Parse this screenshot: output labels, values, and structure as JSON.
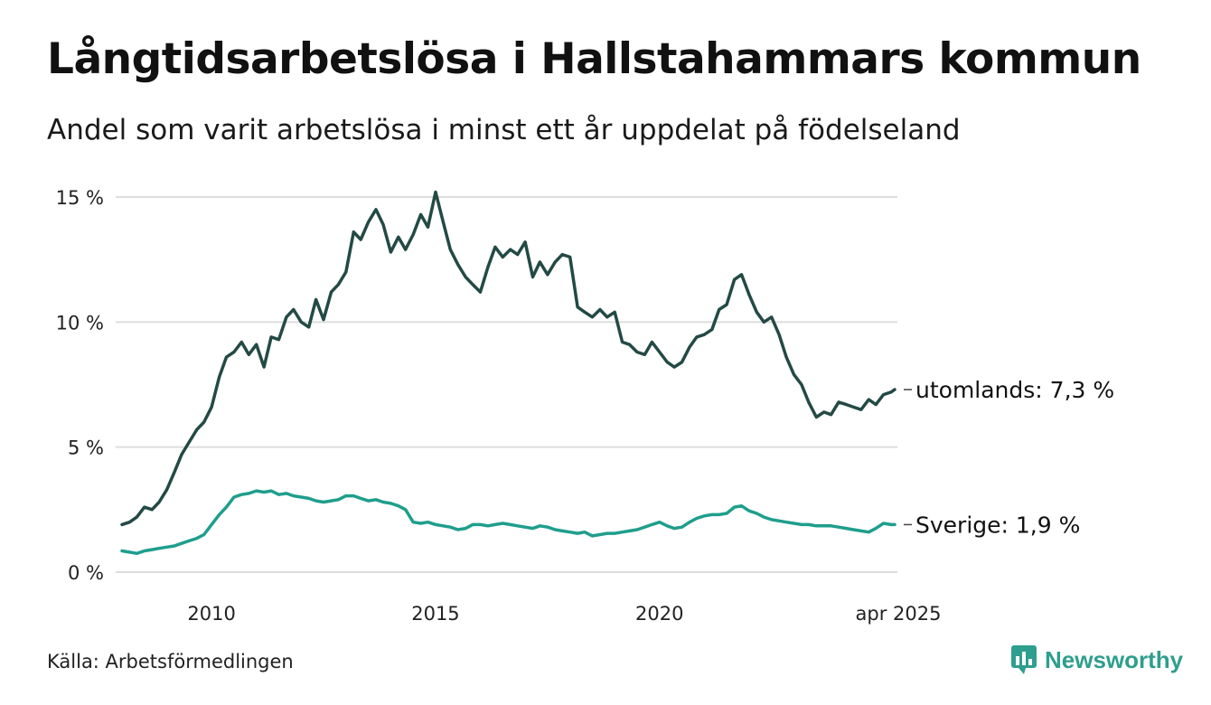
{
  "header": {
    "title": "Långtidsarbetslösa i Hallstahammars kommun",
    "subtitle": "Andel som varit arbetslösa i minst ett år uppdelat på födelseland"
  },
  "footer": {
    "source": "Källa: Arbetsförmedlingen",
    "brand": "Newsworthy",
    "brand_icon": "newsworthy-logo-icon"
  },
  "colors": {
    "utomlands": "#234a45",
    "sverige": "#1f9e8c",
    "grid": "#dddddd",
    "brand": "#2e9e8e"
  },
  "chart_data": {
    "type": "line",
    "title": "Långtidsarbetslösa i Hallstahammars kommun",
    "subtitle": "Andel som varit arbetslösa i minst ett år uppdelat på födelseland",
    "x_range": [
      2008.0,
      2025.25
    ],
    "ylim": [
      0,
      15.5
    ],
    "grid": true,
    "y_ticks": [
      0,
      5,
      10,
      15
    ],
    "y_tick_labels": [
      "0 %",
      "5 %",
      "10 %",
      "15 %"
    ],
    "x_ticks": [
      2010,
      2015,
      2020,
      2025.25
    ],
    "x_tick_labels": [
      "2010",
      "2015",
      "2020",
      "apr 2025"
    ],
    "series": [
      {
        "key": "utomlands",
        "end_label": "utomlands: 7,3 %",
        "points": [
          [
            2008.0,
            1.9
          ],
          [
            2008.17,
            2.0
          ],
          [
            2008.33,
            2.2
          ],
          [
            2008.5,
            2.6
          ],
          [
            2008.67,
            2.5
          ],
          [
            2008.83,
            2.8
          ],
          [
            2009.0,
            3.3
          ],
          [
            2009.17,
            4.0
          ],
          [
            2009.33,
            4.7
          ],
          [
            2009.5,
            5.2
          ],
          [
            2009.67,
            5.7
          ],
          [
            2009.83,
            6.0
          ],
          [
            2010.0,
            6.6
          ],
          [
            2010.17,
            7.8
          ],
          [
            2010.33,
            8.6
          ],
          [
            2010.5,
            8.8
          ],
          [
            2010.67,
            9.2
          ],
          [
            2010.83,
            8.7
          ],
          [
            2011.0,
            9.1
          ],
          [
            2011.17,
            8.2
          ],
          [
            2011.33,
            9.4
          ],
          [
            2011.5,
            9.3
          ],
          [
            2011.67,
            10.2
          ],
          [
            2011.83,
            10.5
          ],
          [
            2012.0,
            10.0
          ],
          [
            2012.17,
            9.8
          ],
          [
            2012.33,
            10.9
          ],
          [
            2012.5,
            10.1
          ],
          [
            2012.67,
            11.2
          ],
          [
            2012.83,
            11.5
          ],
          [
            2013.0,
            12.0
          ],
          [
            2013.17,
            13.6
          ],
          [
            2013.33,
            13.3
          ],
          [
            2013.5,
            14.0
          ],
          [
            2013.67,
            14.5
          ],
          [
            2013.83,
            13.9
          ],
          [
            2014.0,
            12.8
          ],
          [
            2014.17,
            13.4
          ],
          [
            2014.33,
            12.9
          ],
          [
            2014.5,
            13.5
          ],
          [
            2014.67,
            14.3
          ],
          [
            2014.83,
            13.8
          ],
          [
            2015.0,
            15.2
          ],
          [
            2015.17,
            14.0
          ],
          [
            2015.33,
            12.9
          ],
          [
            2015.5,
            12.3
          ],
          [
            2015.67,
            11.8
          ],
          [
            2015.83,
            11.5
          ],
          [
            2016.0,
            11.2
          ],
          [
            2016.17,
            12.2
          ],
          [
            2016.33,
            13.0
          ],
          [
            2016.5,
            12.6
          ],
          [
            2016.67,
            12.9
          ],
          [
            2016.83,
            12.7
          ],
          [
            2017.0,
            13.2
          ],
          [
            2017.17,
            11.8
          ],
          [
            2017.33,
            12.4
          ],
          [
            2017.5,
            11.9
          ],
          [
            2017.67,
            12.4
          ],
          [
            2017.83,
            12.7
          ],
          [
            2018.0,
            12.6
          ],
          [
            2018.17,
            10.6
          ],
          [
            2018.33,
            10.4
          ],
          [
            2018.5,
            10.2
          ],
          [
            2018.67,
            10.5
          ],
          [
            2018.83,
            10.2
          ],
          [
            2019.0,
            10.4
          ],
          [
            2019.17,
            9.2
          ],
          [
            2019.33,
            9.1
          ],
          [
            2019.5,
            8.8
          ],
          [
            2019.67,
            8.7
          ],
          [
            2019.83,
            9.2
          ],
          [
            2020.0,
            8.8
          ],
          [
            2020.17,
            8.4
          ],
          [
            2020.33,
            8.2
          ],
          [
            2020.5,
            8.4
          ],
          [
            2020.67,
            9.0
          ],
          [
            2020.83,
            9.4
          ],
          [
            2021.0,
            9.5
          ],
          [
            2021.17,
            9.7
          ],
          [
            2021.33,
            10.5
          ],
          [
            2021.5,
            10.7
          ],
          [
            2021.67,
            11.7
          ],
          [
            2021.83,
            11.9
          ],
          [
            2022.0,
            11.1
          ],
          [
            2022.17,
            10.4
          ],
          [
            2022.33,
            10.0
          ],
          [
            2022.5,
            10.2
          ],
          [
            2022.67,
            9.5
          ],
          [
            2022.83,
            8.6
          ],
          [
            2023.0,
            7.9
          ],
          [
            2023.17,
            7.5
          ],
          [
            2023.33,
            6.8
          ],
          [
            2023.5,
            6.2
          ],
          [
            2023.67,
            6.4
          ],
          [
            2023.83,
            6.3
          ],
          [
            2024.0,
            6.8
          ],
          [
            2024.17,
            6.7
          ],
          [
            2024.33,
            6.6
          ],
          [
            2024.5,
            6.5
          ],
          [
            2024.67,
            6.9
          ],
          [
            2024.83,
            6.7
          ],
          [
            2025.0,
            7.1
          ],
          [
            2025.17,
            7.2
          ],
          [
            2025.25,
            7.3
          ]
        ]
      },
      {
        "key": "sverige",
        "end_label": "Sverige: 1,9 %",
        "points": [
          [
            2008.0,
            0.85
          ],
          [
            2008.17,
            0.8
          ],
          [
            2008.33,
            0.75
          ],
          [
            2008.5,
            0.85
          ],
          [
            2008.67,
            0.9
          ],
          [
            2008.83,
            0.95
          ],
          [
            2009.0,
            1.0
          ],
          [
            2009.17,
            1.05
          ],
          [
            2009.33,
            1.15
          ],
          [
            2009.5,
            1.25
          ],
          [
            2009.67,
            1.35
          ],
          [
            2009.83,
            1.5
          ],
          [
            2010.0,
            1.9
          ],
          [
            2010.17,
            2.3
          ],
          [
            2010.33,
            2.6
          ],
          [
            2010.5,
            3.0
          ],
          [
            2010.67,
            3.1
          ],
          [
            2010.83,
            3.15
          ],
          [
            2011.0,
            3.25
          ],
          [
            2011.17,
            3.2
          ],
          [
            2011.33,
            3.25
          ],
          [
            2011.5,
            3.1
          ],
          [
            2011.67,
            3.15
          ],
          [
            2011.83,
            3.05
          ],
          [
            2012.0,
            3.0
          ],
          [
            2012.17,
            2.95
          ],
          [
            2012.33,
            2.85
          ],
          [
            2012.5,
            2.8
          ],
          [
            2012.67,
            2.85
          ],
          [
            2012.83,
            2.9
          ],
          [
            2013.0,
            3.05
          ],
          [
            2013.17,
            3.05
          ],
          [
            2013.33,
            2.95
          ],
          [
            2013.5,
            2.85
          ],
          [
            2013.67,
            2.9
          ],
          [
            2013.83,
            2.8
          ],
          [
            2014.0,
            2.75
          ],
          [
            2014.17,
            2.65
          ],
          [
            2014.33,
            2.5
          ],
          [
            2014.5,
            2.0
          ],
          [
            2014.67,
            1.95
          ],
          [
            2014.83,
            2.0
          ],
          [
            2015.0,
            1.9
          ],
          [
            2015.17,
            1.85
          ],
          [
            2015.33,
            1.8
          ],
          [
            2015.5,
            1.7
          ],
          [
            2015.67,
            1.75
          ],
          [
            2015.83,
            1.9
          ],
          [
            2016.0,
            1.9
          ],
          [
            2016.17,
            1.85
          ],
          [
            2016.33,
            1.9
          ],
          [
            2016.5,
            1.95
          ],
          [
            2016.67,
            1.9
          ],
          [
            2016.83,
            1.85
          ],
          [
            2017.0,
            1.8
          ],
          [
            2017.17,
            1.75
          ],
          [
            2017.33,
            1.85
          ],
          [
            2017.5,
            1.8
          ],
          [
            2017.67,
            1.7
          ],
          [
            2017.83,
            1.65
          ],
          [
            2018.0,
            1.6
          ],
          [
            2018.17,
            1.55
          ],
          [
            2018.33,
            1.6
          ],
          [
            2018.5,
            1.45
          ],
          [
            2018.67,
            1.5
          ],
          [
            2018.83,
            1.55
          ],
          [
            2019.0,
            1.55
          ],
          [
            2019.17,
            1.6
          ],
          [
            2019.33,
            1.65
          ],
          [
            2019.5,
            1.7
          ],
          [
            2019.67,
            1.8
          ],
          [
            2019.83,
            1.9
          ],
          [
            2020.0,
            2.0
          ],
          [
            2020.17,
            1.85
          ],
          [
            2020.33,
            1.75
          ],
          [
            2020.5,
            1.8
          ],
          [
            2020.67,
            2.0
          ],
          [
            2020.83,
            2.15
          ],
          [
            2021.0,
            2.25
          ],
          [
            2021.17,
            2.3
          ],
          [
            2021.33,
            2.3
          ],
          [
            2021.5,
            2.35
          ],
          [
            2021.67,
            2.6
          ],
          [
            2021.83,
            2.65
          ],
          [
            2022.0,
            2.45
          ],
          [
            2022.17,
            2.35
          ],
          [
            2022.33,
            2.2
          ],
          [
            2022.5,
            2.1
          ],
          [
            2022.67,
            2.05
          ],
          [
            2022.83,
            2.0
          ],
          [
            2023.0,
            1.95
          ],
          [
            2023.17,
            1.9
          ],
          [
            2023.33,
            1.9
          ],
          [
            2023.5,
            1.85
          ],
          [
            2023.67,
            1.85
          ],
          [
            2023.83,
            1.85
          ],
          [
            2024.0,
            1.8
          ],
          [
            2024.17,
            1.75
          ],
          [
            2024.33,
            1.7
          ],
          [
            2024.5,
            1.65
          ],
          [
            2024.67,
            1.6
          ],
          [
            2024.83,
            1.75
          ],
          [
            2025.0,
            1.95
          ],
          [
            2025.17,
            1.9
          ],
          [
            2025.25,
            1.9
          ]
        ]
      }
    ]
  }
}
